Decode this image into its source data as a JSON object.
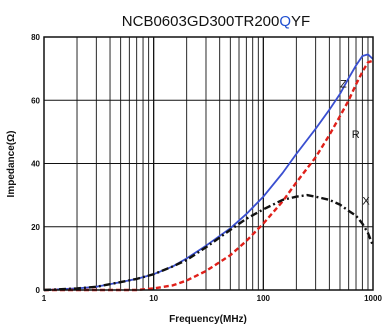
{
  "chart_data": {
    "type": "line",
    "title_prefix": "NCB0603GD300TR200",
    "title_accent": "Q",
    "title_suffix": "YF",
    "colors": {
      "accent": "#1f4fd0",
      "Z": "#3a4fd0",
      "R": "#e0201a",
      "X": "#111111"
    },
    "xlabel": "Frequency(MHz)",
    "ylabel": "Impedance(Ω)",
    "x_scale": "log",
    "xlim": [
      1,
      1000
    ],
    "ylim": [
      0,
      80
    ],
    "grid": true,
    "x_ticks": [
      {
        "value": 1,
        "label": "1"
      },
      {
        "value": 10,
        "label": "10"
      },
      {
        "value": 100,
        "label": "100"
      },
      {
        "value": 1000,
        "label": "1000"
      }
    ],
    "y_ticks": [
      {
        "value": 0,
        "label": "0"
      },
      {
        "value": 20,
        "label": "20"
      },
      {
        "value": 40,
        "label": "40"
      },
      {
        "value": 60,
        "label": "60"
      },
      {
        "value": 80,
        "label": "80"
      }
    ],
    "series": [
      {
        "name": "Z",
        "style": "solid",
        "label_at": [
          500,
          64
        ],
        "x": [
          1,
          2,
          3,
          5,
          7,
          10,
          15,
          20,
          30,
          50,
          70,
          100,
          150,
          200,
          300,
          400,
          500,
          600,
          700,
          800,
          900,
          1000
        ],
        "y": [
          0,
          0.5,
          1,
          2.5,
          3.5,
          5,
          7.5,
          10,
          14,
          19.5,
          24,
          29.5,
          37,
          43,
          51,
          57,
          62,
          67,
          71,
          74,
          74.5,
          73
        ]
      },
      {
        "name": "R",
        "style": "dashed",
        "label_at": [
          640,
          48
        ],
        "x": [
          1,
          5,
          7,
          10,
          15,
          20,
          30,
          50,
          70,
          100,
          150,
          200,
          300,
          400,
          500,
          600,
          700,
          800,
          900,
          1000
        ],
        "y": [
          0,
          0,
          0,
          0.5,
          1.5,
          3,
          6,
          11,
          15.5,
          21,
          28,
          34,
          42,
          49,
          55,
          60,
          65,
          69,
          72,
          72.5
        ]
      },
      {
        "name": "X",
        "style": "dashdot",
        "label_at": [
          800,
          27
        ],
        "x": [
          1,
          2,
          3,
          5,
          7,
          10,
          15,
          20,
          30,
          50,
          70,
          100,
          150,
          200,
          250,
          300,
          400,
          500,
          600,
          700,
          800,
          900,
          1000
        ],
        "y": [
          0,
          0.5,
          1,
          2.5,
          3.5,
          5,
          7.5,
          9.5,
          13.5,
          19,
          22.5,
          25.5,
          28.5,
          29.5,
          30,
          29.5,
          28.5,
          27,
          25,
          23.5,
          21,
          18,
          14
        ]
      }
    ]
  }
}
